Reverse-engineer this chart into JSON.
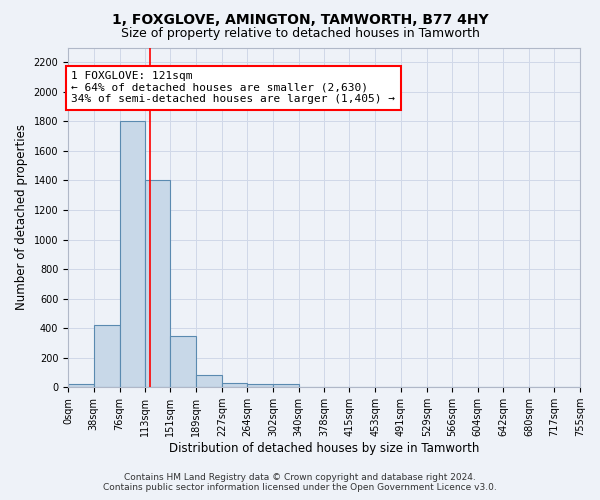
{
  "title": "1, FOXGLOVE, AMINGTON, TAMWORTH, B77 4HY",
  "subtitle": "Size of property relative to detached houses in Tamworth",
  "xlabel": "Distribution of detached houses by size in Tamworth",
  "ylabel": "Number of detached properties",
  "footer_line1": "Contains HM Land Registry data © Crown copyright and database right 2024.",
  "footer_line2": "Contains public sector information licensed under the Open Government Licence v3.0.",
  "bin_edges": [
    0,
    38,
    76,
    113,
    151,
    189,
    227,
    264,
    302,
    340,
    378,
    415,
    453,
    491,
    529,
    566,
    604,
    642,
    680,
    717,
    755
  ],
  "bar_heights": [
    20,
    420,
    1800,
    1400,
    350,
    80,
    30,
    20,
    20,
    0,
    0,
    0,
    0,
    0,
    0,
    0,
    0,
    0,
    0,
    0
  ],
  "bar_color": "#c8d8e8",
  "bar_edge_color": "#5a8ab0",
  "grid_color": "#d0d8e8",
  "vline_x": 121,
  "vline_color": "red",
  "annotation_line1": "1 FOXGLOVE: 121sqm",
  "annotation_line2": "← 64% of detached houses are smaller (2,630)",
  "annotation_line3": "34% of semi-detached houses are larger (1,405) →",
  "annotation_box_color": "white",
  "annotation_box_edge": "red",
  "ylim": [
    0,
    2300
  ],
  "yticks": [
    0,
    200,
    400,
    600,
    800,
    1000,
    1200,
    1400,
    1600,
    1800,
    2000,
    2200
  ],
  "bg_color": "#eef2f8",
  "title_fontsize": 10,
  "subtitle_fontsize": 9,
  "axis_label_fontsize": 8.5,
  "tick_fontsize": 7,
  "footer_fontsize": 6.5,
  "annotation_fontsize": 8
}
